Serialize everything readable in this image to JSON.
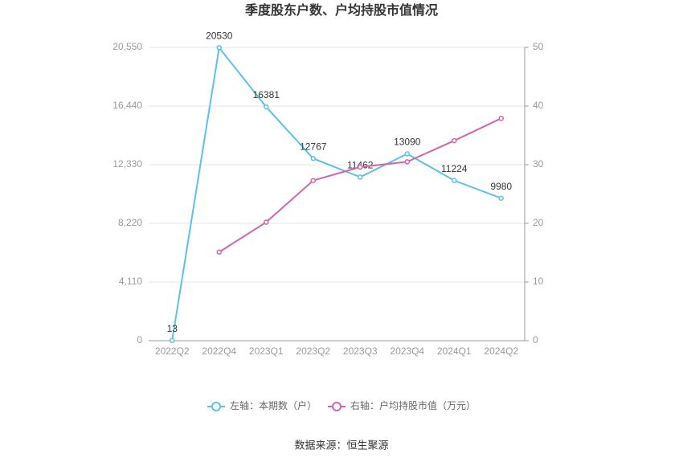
{
  "chart_data": {
    "type": "line",
    "title": "季度股东户数、户均持股市值情况",
    "source": "数据来源：恒生聚源",
    "categories": [
      "2022Q2",
      "2022Q4",
      "2023Q1",
      "2023Q2",
      "2023Q3",
      "2023Q4",
      "2024Q1",
      "2024Q2"
    ],
    "series": [
      {
        "name": "左轴：本期数（户）",
        "color": "#5bc0eb",
        "values": [
          13,
          20530,
          16381,
          12767,
          11462,
          13090,
          11224,
          9980
        ],
        "show_labels": true
      },
      {
        "name": "右轴：户均持股市值（万元）",
        "color": "#d165a9",
        "axis": "y2",
        "values": [
          null,
          15.1,
          20.2,
          27.3,
          29.6,
          30.5,
          34.1,
          37.9
        ],
        "show_labels": false
      }
    ],
    "ylim": [
      0,
      20550
    ],
    "yticks": [
      0,
      {
        "value": 4110,
        "label": "4,110"
      },
      {
        "value": 8220,
        "label": "8,220"
      },
      {
        "value": 12330,
        "label": "12,330"
      },
      {
        "value": 16440,
        "label": "16,440"
      },
      {
        "value": 20550,
        "label": "20,550"
      }
    ],
    "y2lim": [
      0,
      50
    ],
    "y2ticks": [
      0,
      10,
      20,
      30,
      40,
      50
    ],
    "grid": true,
    "legend": "bottom"
  }
}
